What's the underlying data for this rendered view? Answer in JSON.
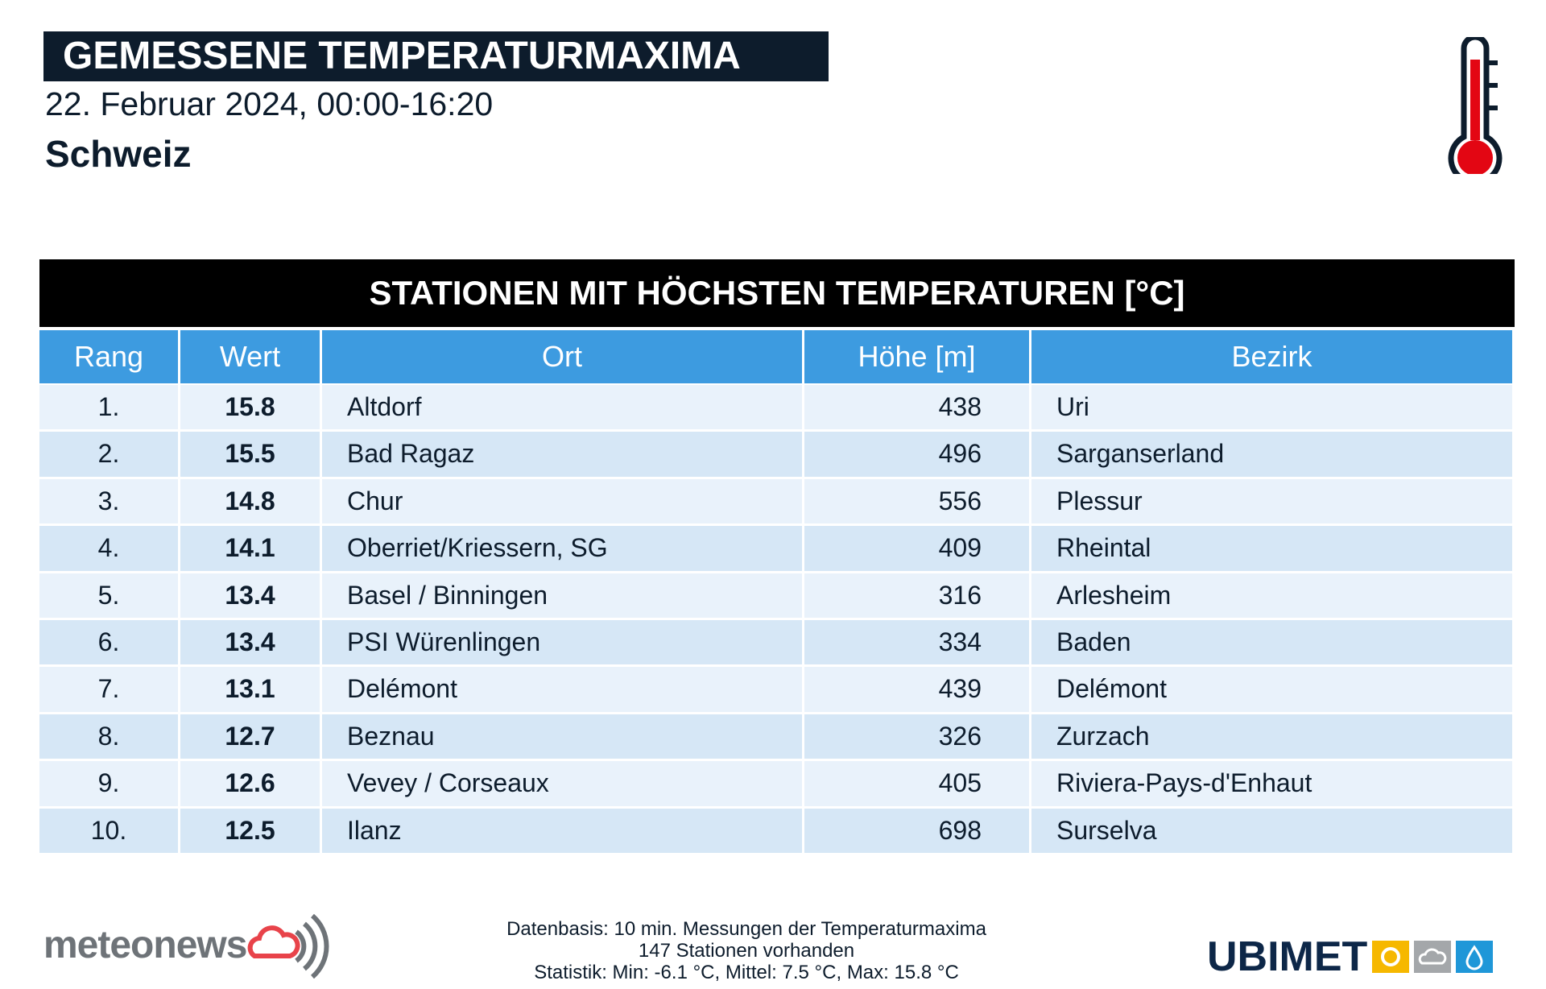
{
  "header": {
    "title": "GEMESSENE TEMPERATURMAXIMA",
    "date": "22. Februar 2024, 00:00-16:20",
    "region": "Schweiz"
  },
  "table": {
    "title": "STATIONEN MIT HÖCHSTEN TEMPERATUREN [°C]",
    "columns": [
      "Rang",
      "Wert",
      "Ort",
      "Höhe [m]",
      "Bezirk"
    ],
    "rows": [
      [
        "1.",
        "15.8",
        "Altdorf",
        "438",
        "Uri"
      ],
      [
        "2.",
        "15.5",
        "Bad Ragaz",
        "496",
        "Sarganserland"
      ],
      [
        "3.",
        "14.8",
        "Chur",
        "556",
        "Plessur"
      ],
      [
        "4.",
        "14.1",
        "Oberriet/Kriessern, SG",
        "409",
        "Rheintal"
      ],
      [
        "5.",
        "13.4",
        "Basel / Binningen",
        "316",
        "Arlesheim"
      ],
      [
        "6.",
        "13.4",
        "PSI Würenlingen",
        "334",
        "Baden"
      ],
      [
        "7.",
        "13.1",
        "Delémont",
        "439",
        "Delémont"
      ],
      [
        "8.",
        "12.7",
        "Beznau",
        "326",
        "Zurzach"
      ],
      [
        "9.",
        "12.6",
        "Vevey / Corseaux",
        "405",
        "Riviera-Pays-d'Enhaut"
      ],
      [
        "10.",
        "12.5",
        "Ilanz",
        "698",
        "Surselva"
      ]
    ]
  },
  "footer": {
    "lines": [
      "Datenbasis: 10 min. Messungen der Temperaturmaxima",
      "147 Stationen vorhanden",
      "Statistik: Min: -6.1 °C, Mittel: 7.5 °C, Max: 15.8 °C"
    ],
    "logo_left": "meteonews",
    "logo_right": "UBIMET"
  }
}
